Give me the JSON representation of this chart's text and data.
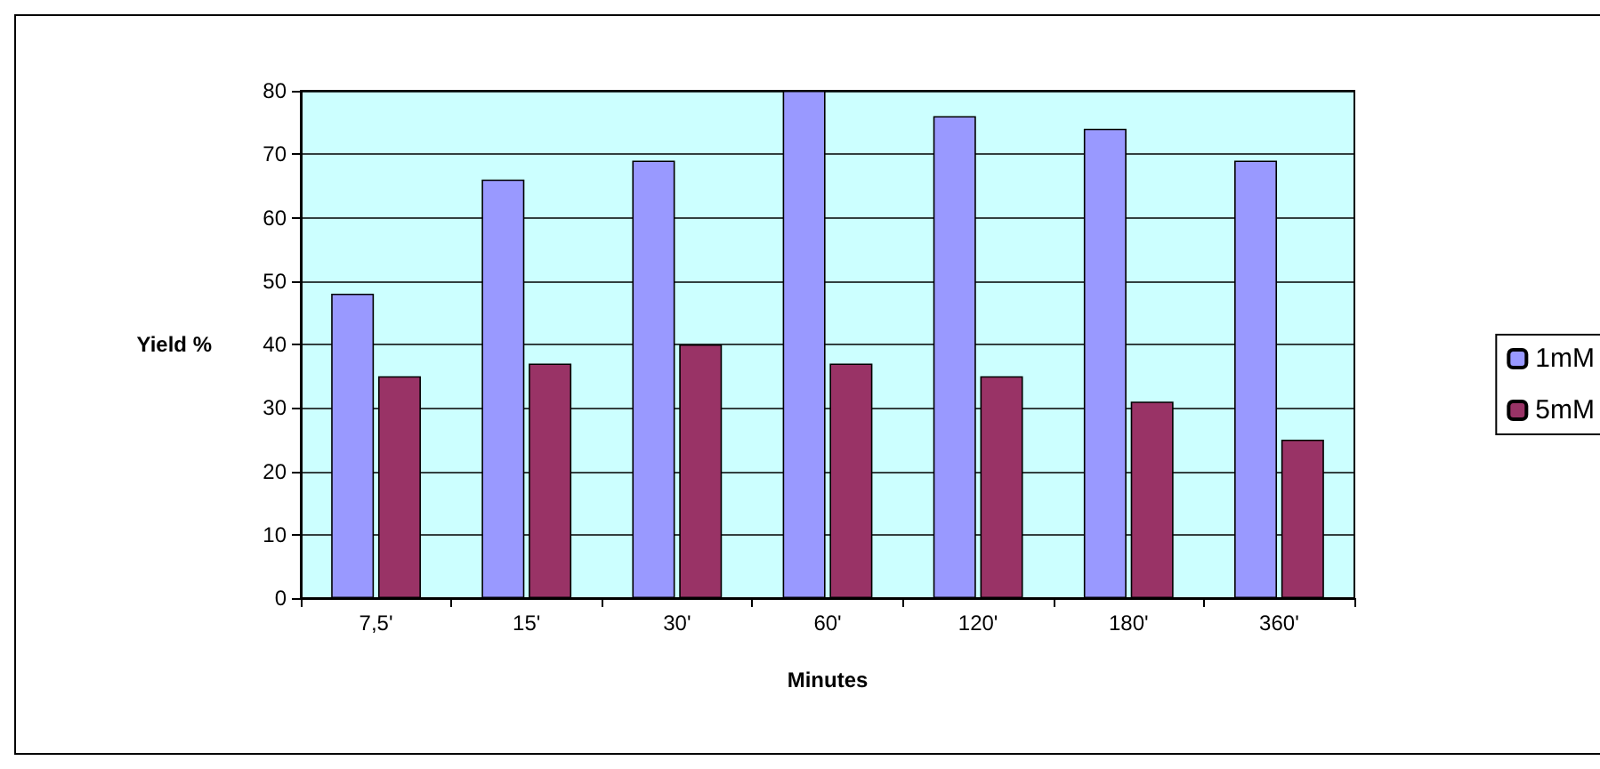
{
  "chart_data": {
    "type": "bar",
    "xlabel": "Minutes",
    "ylabel": "Yield %",
    "categories": [
      "7,5'",
      "15'",
      "30'",
      "60'",
      "120'",
      "180'",
      "360'"
    ],
    "series": [
      {
        "name": "1mM",
        "color": "#9999ff",
        "values": [
          48,
          66,
          69,
          80,
          76,
          74,
          69
        ]
      },
      {
        "name": "5mM",
        "color": "#993366",
        "values": [
          35,
          37,
          40,
          37,
          35,
          31,
          25
        ]
      }
    ],
    "ylim": [
      0,
      80
    ],
    "yticks": [
      0,
      10,
      20,
      30,
      40,
      50,
      60,
      70,
      80
    ],
    "grid": "y",
    "legend": "right"
  }
}
